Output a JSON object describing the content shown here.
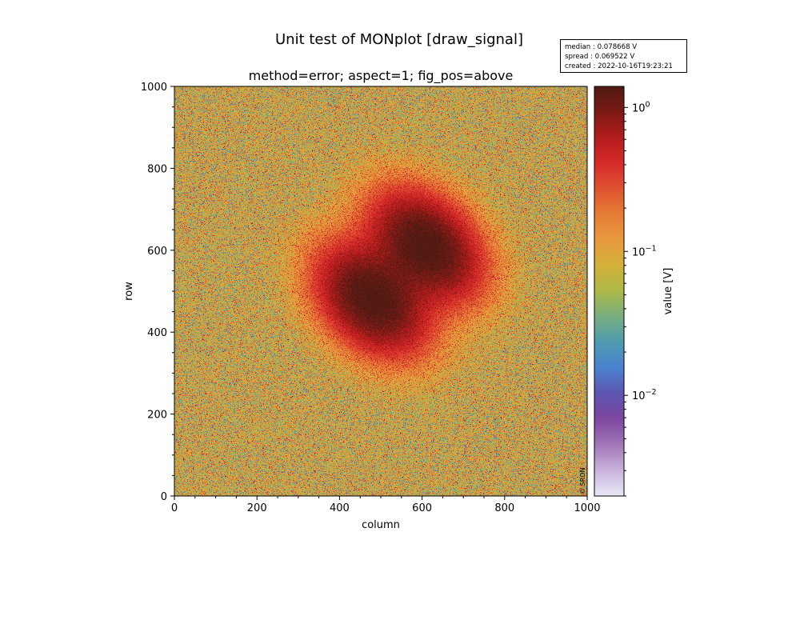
{
  "figure": {
    "suptitle": "Unit test of MONplot [draw_signal]",
    "info": {
      "median": "median : 0.078668 V",
      "spread": "spread : 0.069522 V",
      "created": "created : 2022-10-16T19:23:21"
    },
    "copyright": "© SRON"
  },
  "chart_data": {
    "type": "heatmap",
    "title": "method=error; aspect=1; fig_pos=above",
    "xlabel": "column",
    "ylabel": "row",
    "xlim": [
      0,
      1000
    ],
    "ylim": [
      0,
      1000
    ],
    "x_ticks": [
      "0",
      "200",
      "400",
      "600",
      "800",
      "1000"
    ],
    "y_ticks": [
      "0",
      "200",
      "400",
      "600",
      "800",
      "1000"
    ],
    "colorbar": {
      "label": "value [V]",
      "scale": "log",
      "range": [
        0.002,
        1.4
      ],
      "tick_values": [
        0.01,
        0.1,
        1
      ],
      "tick_labels": [
        "10",
        "10",
        "10"
      ],
      "tick_exponents": [
        "−2",
        "−1",
        "0"
      ],
      "colormap": [
        "#e8e8f6",
        "#c9b3dc",
        "#a277b8",
        "#7e47a0",
        "#5d55b0",
        "#4a82d0",
        "#4e9bb0",
        "#77ad80",
        "#acb848",
        "#d3b13a",
        "#e89a3e",
        "#e57c35",
        "#df5330",
        "#d72a2a",
        "#b31c1c",
        "#7c1a14",
        "#4f1a14"
      ]
    },
    "background_median": 0.078668,
    "background_spread": 0.069522,
    "features": [
      {
        "shape": "gaussian-lobe",
        "center": [
          480,
          480
        ],
        "peak": 1.4
      },
      {
        "shape": "gaussian-lobe",
        "center": [
          610,
          610
        ],
        "peak": 1.4
      }
    ]
  }
}
